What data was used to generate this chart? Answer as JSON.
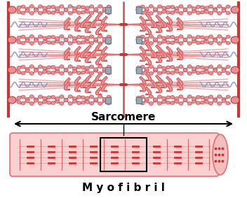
{
  "bg_color": "#ffffff",
  "sarcomere_label": "Sarcomere",
  "myofibril_label": "M y o f i b r i l",
  "pink_light": "#f7c8c8",
  "pink_mid": "#e07070",
  "pink_dark": "#cc3333",
  "pink_fill": "#e89090",
  "pink_bg": "#faeaea",
  "blue_color": "#8899cc",
  "border_color": "#cc3333",
  "gray_color": "#999999",
  "fig_width": 3.52,
  "fig_height": 2.83,
  "dpi": 100
}
